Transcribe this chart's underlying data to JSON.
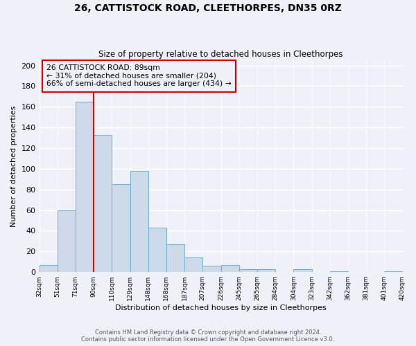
{
  "title": "26, CATTISTOCK ROAD, CLEETHORPES, DN35 0RZ",
  "subtitle": "Size of property relative to detached houses in Cleethorpes",
  "xlabel": "Distribution of detached houses by size in Cleethorpes",
  "ylabel": "Number of detached properties",
  "footer_line1": "Contains HM Land Registry data © Crown copyright and database right 2024.",
  "footer_line2": "Contains public sector information licensed under the Open Government Licence v3.0.",
  "bin_labels": [
    "32sqm",
    "51sqm",
    "71sqm",
    "90sqm",
    "110sqm",
    "129sqm",
    "148sqm",
    "168sqm",
    "187sqm",
    "207sqm",
    "226sqm",
    "245sqm",
    "265sqm",
    "284sqm",
    "304sqm",
    "323sqm",
    "342sqm",
    "362sqm",
    "381sqm",
    "401sqm",
    "420sqm"
  ],
  "bar_heights": [
    7,
    60,
    165,
    133,
    85,
    98,
    43,
    27,
    14,
    6,
    7,
    3,
    3,
    0,
    3,
    0,
    1,
    0,
    0,
    1
  ],
  "bar_color": "#ccdaea",
  "bar_edge_color": "#6aafd4",
  "vline_color": "#cc0000",
  "annotation_title": "26 CATTISTOCK ROAD: 89sqm",
  "annotation_line1": "← 31% of detached houses are smaller (204)",
  "annotation_line2": "66% of semi-detached houses are larger (434) →",
  "annotation_box_edge": "#cc0000",
  "ylim": [
    0,
    205
  ],
  "yticks": [
    0,
    20,
    40,
    60,
    80,
    100,
    120,
    140,
    160,
    180,
    200
  ],
  "background_color": "#eef2f8",
  "grid_color": "#d0d8e8"
}
